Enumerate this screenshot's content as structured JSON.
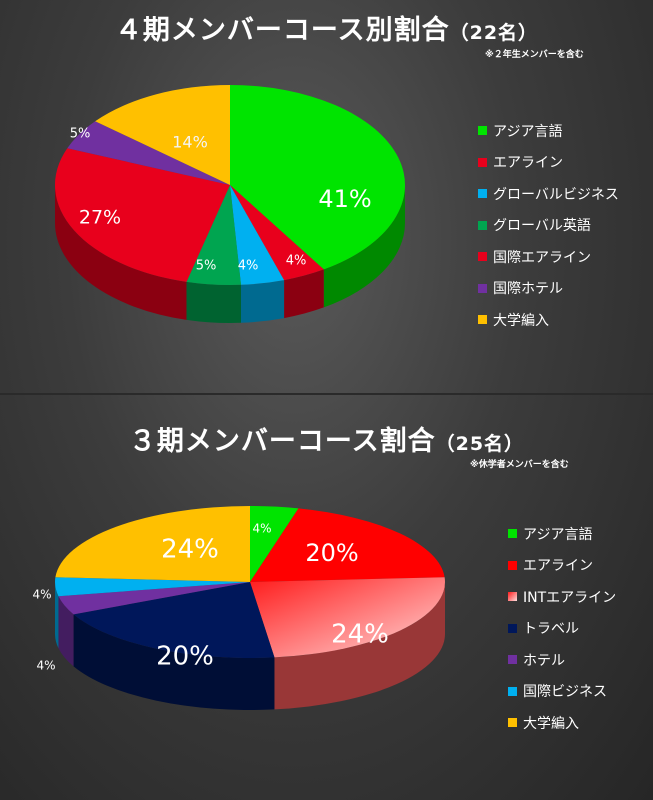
{
  "chart_data": [
    {
      "type": "pie",
      "title": "４期メンバーコース別割合",
      "subtitle": "（22名）",
      "note": "※２年生メンバーを含む",
      "legend_position": "right",
      "categories": [
        "アジア言語",
        "エアライン",
        "グローバルビジネス",
        "グローバル英語",
        "国際エアライン",
        "国際ホテル",
        "大学編入"
      ],
      "values": [
        41,
        4,
        4,
        5,
        27,
        5,
        14
      ],
      "labels": [
        "41%",
        "4%",
        "4%",
        "5%",
        "27%",
        "5%",
        "14%"
      ],
      "colors": [
        "#00e400",
        "#e8001c",
        "#00b0f0",
        "#00a550",
        "#e8001c",
        "#7030a0",
        "#ffc000"
      ]
    },
    {
      "type": "pie",
      "title": "３期メンバーコース割合",
      "subtitle": "（25名）",
      "note": "※休学者メンバーを含む",
      "legend_position": "right",
      "categories": [
        "アジア言語",
        "エアライン",
        "INTエアライン",
        "トラベル",
        "ホテル",
        "国際ビジネス",
        "大学編入"
      ],
      "values": [
        4,
        20,
        24,
        20,
        4,
        4,
        24
      ],
      "labels": [
        "4%",
        "20%",
        "24%",
        "20%",
        "4%",
        "4%",
        "24%"
      ],
      "colors": [
        "#00e400",
        "#ff0000",
        "#ff5b5b",
        "#00175a",
        "#7030a0",
        "#00b0f0",
        "#ffc000"
      ]
    }
  ]
}
